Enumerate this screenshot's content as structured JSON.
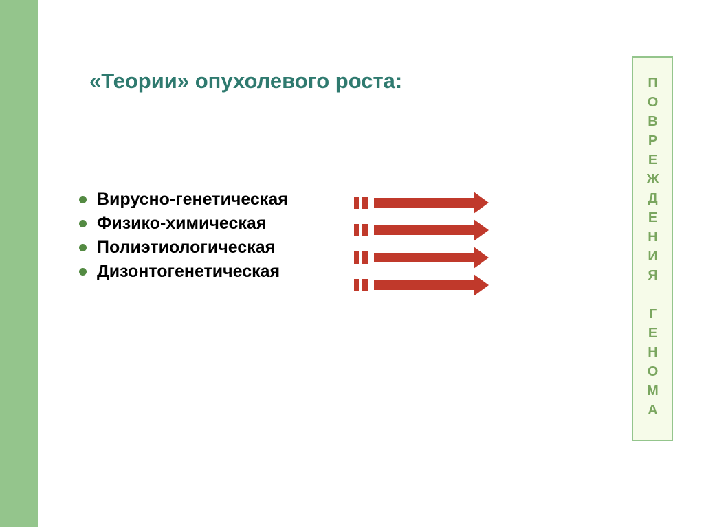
{
  "colors": {
    "left_bar": "#94c58c",
    "title": "#2f7a6f",
    "bullet_dot": "#538a42",
    "bullet_text": "#000000",
    "arrow_fill": "#c0392b",
    "side_border": "#94c58c",
    "side_bg": "#f6fbe9",
    "side_text": "#7aa65f"
  },
  "fonts": {
    "title_size": 31,
    "bullet_size": 25,
    "side_size": 20,
    "bullet_dot_size": 11
  },
  "title": "«Теории» опухолевого роста:",
  "bullets": [
    "Вирусно-генетическая",
    "Физико-химическая",
    "Полиэтиологическая",
    "Дизонтогенетическая"
  ],
  "arrow": {
    "stub1_w": 7,
    "stub2_w": 10,
    "shaft_w": 145,
    "head_w": 22,
    "head_half_h": 16
  },
  "sidebar_text": "ПОВРЕЖДЕНИЯ ГЕНОМА"
}
